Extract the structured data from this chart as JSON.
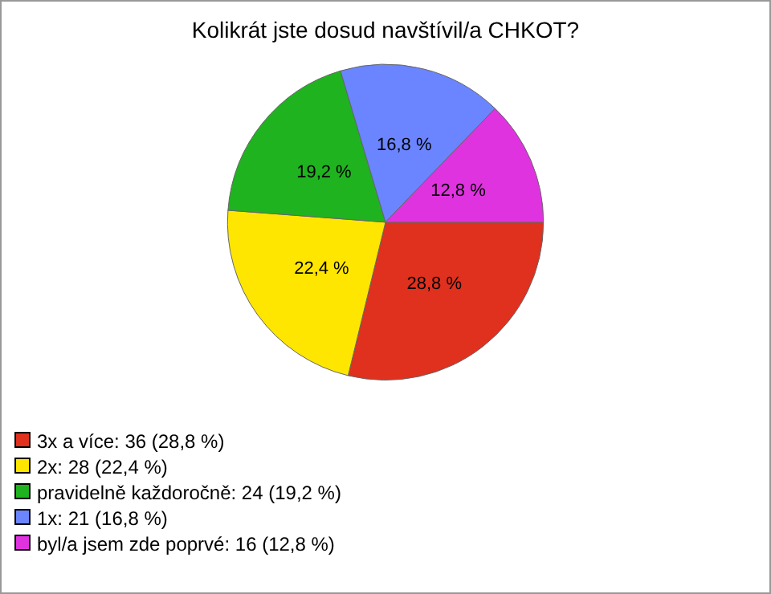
{
  "chart_data": {
    "type": "pie",
    "title": "Kolikrát jste dosud navštívil/a CHKOT?",
    "categories": [
      "3x a více: 36 (28,8 %)",
      "2x: 28 (22,4 %)",
      "pravidelně každoročně: 24 (19,2 %)",
      "1x: 21 (16,8 %)",
      "byl/a jsem zde poprvé: 16 (12,8 %)"
    ],
    "values": [
      28.8,
      22.4,
      19.2,
      16.8,
      12.8
    ],
    "value_labels": [
      "28,8 %",
      "22,4 %",
      "19,2 %",
      "16,8 %",
      "12,8 %"
    ],
    "colors": [
      "#e0301e",
      "#ffe600",
      "#1fb31f",
      "#6a85ff",
      "#e033e0"
    ],
    "legend": "bottom left"
  }
}
